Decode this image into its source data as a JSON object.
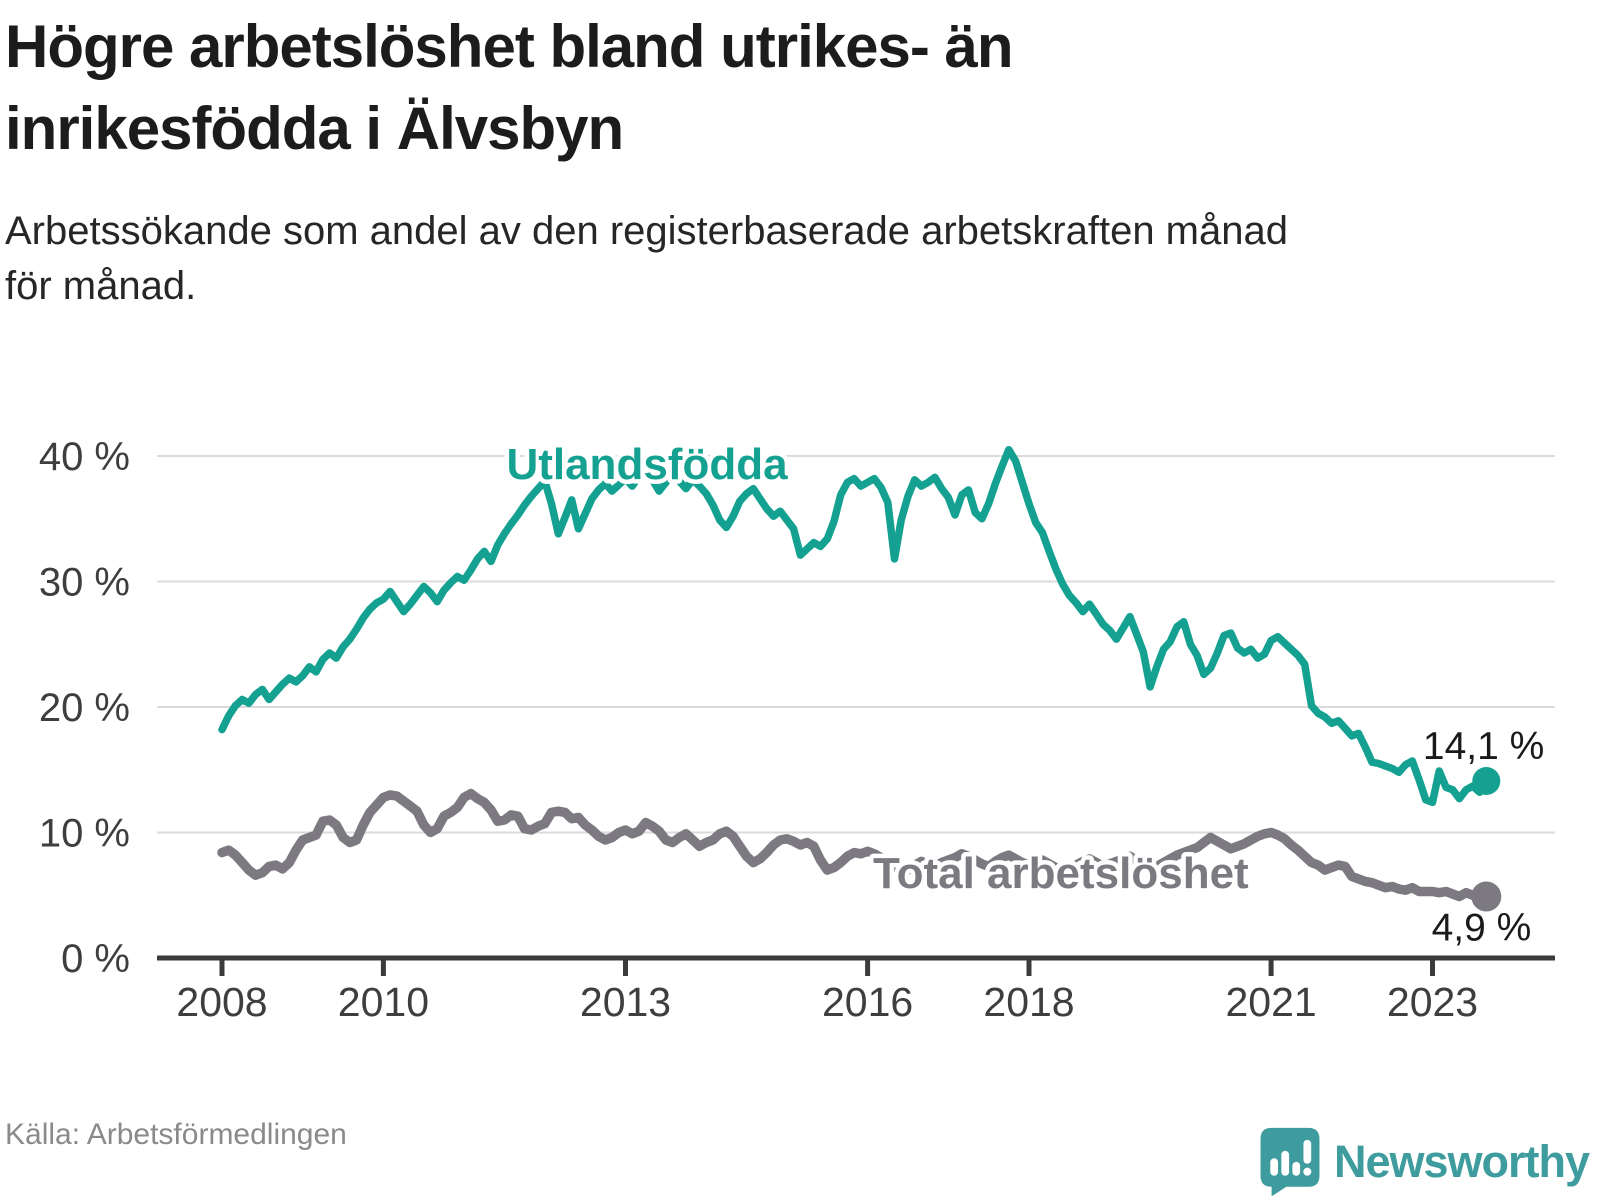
{
  "header": {
    "title_lines": [
      "Högre arbetslöshet bland utrikes- än",
      "inrikesfödda i Älvsbyn"
    ],
    "subtitle_lines": [
      "Arbetssökande som andel av den registerbaserade arbetskraften månad",
      "för månad."
    ]
  },
  "footer": {
    "source": "Källa: Arbetsförmedlingen",
    "logo_text": "Newsworthy"
  },
  "colors": {
    "accent_teal": "#14a191",
    "line_gray": "#7c7a80",
    "logo_teal": "#3e9c9e",
    "axis": "#3b3b3b",
    "grid": "#dbdbdb",
    "end_label_text": "#1a1a1a"
  },
  "chart_data": {
    "type": "line",
    "unit": "%",
    "frequency": "monthly",
    "x_start": "2008-01",
    "x_end": "2023-09",
    "ylim": [
      0,
      42
    ],
    "grid": "horizontal",
    "y_ticks": [
      {
        "label": "0 %",
        "value": 0
      },
      {
        "label": "10 %",
        "value": 10
      },
      {
        "label": "20 %",
        "value": 20
      },
      {
        "label": "30 %",
        "value": 30
      },
      {
        "label": "40 %",
        "value": 40
      }
    ],
    "x_ticks": [
      {
        "label": "2008",
        "year": 2008
      },
      {
        "label": "2010",
        "year": 2010
      },
      {
        "label": "2013",
        "year": 2013
      },
      {
        "label": "2016",
        "year": 2016
      },
      {
        "label": "2018",
        "year": 2018
      },
      {
        "label": "2021",
        "year": 2021
      },
      {
        "label": "2023",
        "year": 2023
      }
    ],
    "series": [
      {
        "name": "Utlandsfödda",
        "color": "#14a191",
        "end_label": "14,1 %",
        "end_value": 14.1,
        "values": [
          18.2,
          19.3,
          20.1,
          20.6,
          20.3,
          21.0,
          21.4,
          20.6,
          21.2,
          21.8,
          22.3,
          22.0,
          22.5,
          23.2,
          22.8,
          23.8,
          24.3,
          23.9,
          24.8,
          25.4,
          26.2,
          27.1,
          27.8,
          28.3,
          28.6,
          29.2,
          28.4,
          27.6,
          28.2,
          28.9,
          29.6,
          29.1,
          28.4,
          29.3,
          29.9,
          30.4,
          30.1,
          30.9,
          31.8,
          32.4,
          31.6,
          32.9,
          33.8,
          34.6,
          35.3,
          36.1,
          36.8,
          37.4,
          38.0,
          36.2,
          33.8,
          35.1,
          36.5,
          34.2,
          35.4,
          36.6,
          37.3,
          37.8,
          37.2,
          37.7,
          38.2,
          37.6,
          38.4,
          39.0,
          38.1,
          37.2,
          37.9,
          38.6,
          38.0,
          37.4,
          38.1,
          37.6,
          37.0,
          36.1,
          34.9,
          34.3,
          35.2,
          36.4,
          37.0,
          37.4,
          36.6,
          35.8,
          35.2,
          35.6,
          34.9,
          34.2,
          32.1,
          32.6,
          33.1,
          32.8,
          33.4,
          34.8,
          36.9,
          37.9,
          38.2,
          37.6,
          37.9,
          38.2,
          37.5,
          36.3,
          31.8,
          34.9,
          36.8,
          38.1,
          37.6,
          37.9,
          38.3,
          37.4,
          36.7,
          35.3,
          36.9,
          37.3,
          35.5,
          35.0,
          36.2,
          37.8,
          39.2,
          40.5,
          39.6,
          37.9,
          36.2,
          34.7,
          33.9,
          32.4,
          31.0,
          29.8,
          28.9,
          28.3,
          27.6,
          28.2,
          27.4,
          26.6,
          26.1,
          25.4,
          26.3,
          27.2,
          25.8,
          24.4,
          21.6,
          23.2,
          24.6,
          25.2,
          26.4,
          26.8,
          25.0,
          24.1,
          22.6,
          23.1,
          24.3,
          25.7,
          25.9,
          24.7,
          24.3,
          24.6,
          23.9,
          24.2,
          25.3,
          25.6,
          25.1,
          24.6,
          24.1,
          23.4,
          20.1,
          19.5,
          19.2,
          18.7,
          18.9,
          18.3,
          17.7,
          17.9,
          16.8,
          15.6,
          15.5,
          15.3,
          15.1,
          14.8,
          15.4,
          15.7,
          14.2,
          12.6,
          12.4,
          14.9,
          13.6,
          13.4,
          12.7,
          13.4,
          13.7,
          13.2,
          14.1
        ]
      },
      {
        "name": "Total arbetslöshet",
        "color": "#7c7a80",
        "end_label": "4,9 %",
        "end_value": 4.9,
        "values": [
          8.4,
          8.6,
          8.2,
          7.6,
          7.0,
          6.6,
          6.8,
          7.3,
          7.4,
          7.1,
          7.6,
          8.6,
          9.4,
          9.6,
          9.8,
          10.9,
          11.0,
          10.6,
          9.6,
          9.2,
          9.4,
          10.6,
          11.6,
          12.2,
          12.8,
          13.0,
          12.9,
          12.5,
          12.1,
          11.7,
          10.6,
          10.0,
          10.3,
          11.3,
          11.6,
          12.0,
          12.8,
          13.1,
          12.7,
          12.4,
          11.8,
          10.9,
          11.0,
          11.4,
          11.3,
          10.3,
          10.2,
          10.5,
          10.7,
          11.6,
          11.7,
          11.6,
          11.1,
          11.2,
          10.6,
          10.2,
          9.7,
          9.4,
          9.6,
          10.0,
          10.2,
          9.9,
          10.1,
          10.8,
          10.5,
          10.1,
          9.4,
          9.2,
          9.6,
          9.9,
          9.4,
          8.9,
          9.2,
          9.4,
          9.9,
          10.1,
          9.7,
          8.9,
          8.1,
          7.6,
          7.9,
          8.4,
          9.0,
          9.4,
          9.5,
          9.3,
          9.0,
          9.2,
          8.9,
          7.8,
          7.0,
          7.2,
          7.6,
          8.1,
          8.4,
          8.3,
          8.5,
          8.3,
          8.0,
          7.7,
          7.3,
          6.9,
          7.0,
          7.4,
          7.7,
          7.5,
          7.3,
          7.6,
          7.8,
          8.0,
          8.3,
          8.1,
          7.8,
          7.5,
          7.3,
          7.7,
          8.0,
          8.2,
          7.9,
          7.6,
          7.4,
          7.6,
          7.8,
          7.5,
          7.2,
          6.9,
          7.1,
          7.4,
          7.7,
          7.9,
          7.6,
          7.3,
          7.5,
          7.7,
          7.9,
          8.1,
          7.8,
          7.4,
          7.1,
          7.3,
          7.6,
          7.9,
          8.2,
          8.4,
          8.6,
          8.8,
          9.2,
          9.6,
          9.3,
          9.0,
          8.7,
          8.9,
          9.1,
          9.4,
          9.7,
          9.9,
          10.0,
          9.8,
          9.5,
          9.0,
          8.6,
          8.1,
          7.6,
          7.4,
          7.0,
          7.2,
          7.4,
          7.3,
          6.5,
          6.3,
          6.1,
          6.0,
          5.8,
          5.6,
          5.7,
          5.5,
          5.4,
          5.6,
          5.3,
          5.3,
          5.3,
          5.2,
          5.3,
          5.1,
          4.9,
          5.2,
          5.0,
          4.8,
          4.9
        ]
      }
    ]
  }
}
